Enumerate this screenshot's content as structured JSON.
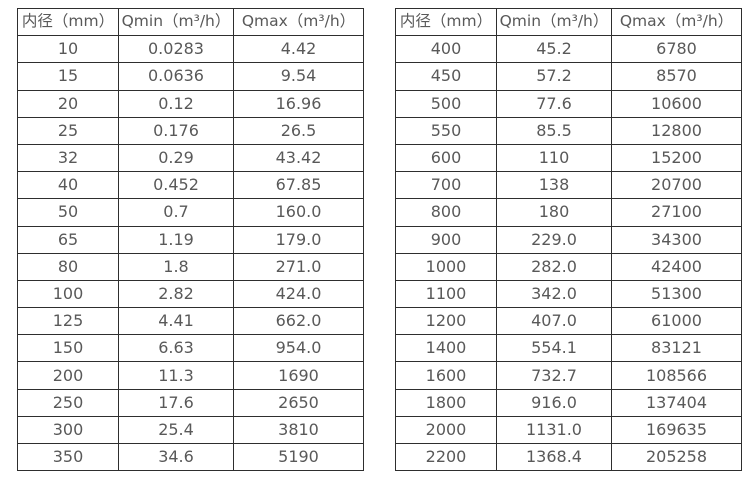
{
  "colors": {
    "background": "#ffffff",
    "table_border": "#2e2e2e",
    "text": "#595959"
  },
  "tables": [
    {
      "name": "small-diameters",
      "headers": [
        "内径（mm）",
        "Qmin（m³/h）",
        "Qmax（m³/h）"
      ],
      "rows": [
        [
          "10",
          "0.0283",
          "4.42"
        ],
        [
          "15",
          "0.0636",
          "9.54"
        ],
        [
          "20",
          "0.12",
          "16.96"
        ],
        [
          "25",
          "0.176",
          "26.5"
        ],
        [
          "32",
          "0.29",
          "43.42"
        ],
        [
          "40",
          "0.452",
          "67.85"
        ],
        [
          "50",
          "0.7",
          "160.0"
        ],
        [
          "65",
          "1.19",
          "179.0"
        ],
        [
          "80",
          "1.8",
          "271.0"
        ],
        [
          "100",
          "2.82",
          "424.0"
        ],
        [
          "125",
          "4.41",
          "662.0"
        ],
        [
          "150",
          "6.63",
          "954.0"
        ],
        [
          "200",
          "11.3",
          "1690"
        ],
        [
          "250",
          "17.6",
          "2650"
        ],
        [
          "300",
          "25.4",
          "3810"
        ],
        [
          "350",
          "34.6",
          "5190"
        ]
      ]
    },
    {
      "name": "large-diameters",
      "headers": [
        "内径（mm）",
        "Qmin（m³/h）",
        "Qmax（m³/h）"
      ],
      "rows": [
        [
          "400",
          "45.2",
          "6780"
        ],
        [
          "450",
          "57.2",
          "8570"
        ],
        [
          "500",
          "77.6",
          "10600"
        ],
        [
          "550",
          "85.5",
          "12800"
        ],
        [
          "600",
          "110",
          "15200"
        ],
        [
          "700",
          "138",
          "20700"
        ],
        [
          "800",
          "180",
          "27100"
        ],
        [
          "900",
          "229.0",
          "34300"
        ],
        [
          "1000",
          "282.0",
          "42400"
        ],
        [
          "1100",
          "342.0",
          "51300"
        ],
        [
          "1200",
          "407.0",
          "61000"
        ],
        [
          "1400",
          "554.1",
          "83121"
        ],
        [
          "1600",
          "732.7",
          "108566"
        ],
        [
          "1800",
          "916.0",
          "137404"
        ],
        [
          "2000",
          "1131.0",
          "169635"
        ],
        [
          "2200",
          "1368.4",
          "205258"
        ]
      ]
    }
  ]
}
